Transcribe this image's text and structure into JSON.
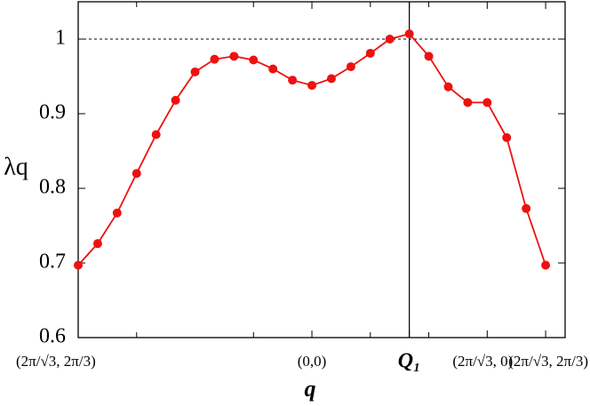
{
  "chart_data": {
    "type": "line",
    "xlabel": "q",
    "ylabel": "λq",
    "x": [
      0,
      1,
      2,
      3,
      4,
      5,
      6,
      7,
      8,
      9,
      10,
      11,
      12,
      13,
      14,
      15,
      16,
      17,
      18,
      19,
      20,
      21,
      22,
      23,
      24
    ],
    "series": [
      {
        "color": "#ee1111",
        "values": [
          0.697,
          0.726,
          0.767,
          0.82,
          0.872,
          0.918,
          0.956,
          0.973,
          0.977,
          0.972,
          0.96,
          0.945,
          0.938,
          0.947,
          0.963,
          0.981,
          1.0,
          1.007,
          0.977,
          0.936,
          0.915,
          0.915,
          0.868,
          0.773,
          0.697
        ]
      }
    ],
    "xlim": [
      0,
      25
    ],
    "ylim": [
      0.6,
      1.05
    ],
    "xticks": [
      {
        "value": 0,
        "label": "(2π/√3, 2π/3)"
      },
      {
        "value": 12,
        "label": "(0,0)"
      },
      {
        "value": 17,
        "label": "Q₁"
      },
      {
        "value": 21,
        "label": "(2π/√3, 0)"
      },
      {
        "value": 24,
        "label": "(2π/√3, 2π/3)"
      }
    ],
    "xminor_ticks": [
      3,
      9,
      15,
      18
    ],
    "yticks": [
      0.6,
      0.7,
      0.8,
      0.9,
      1
    ],
    "vline": 17,
    "hline": 1
  }
}
